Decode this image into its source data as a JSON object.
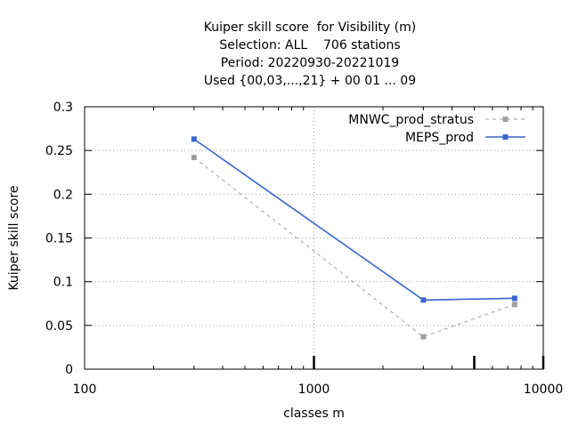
{
  "chart_data": {
    "type": "line",
    "title_lines": [
      "Kuiper skill score  for Visibility (m)",
      "Selection: ALL    706 stations",
      "Period: 20220930-20221019",
      "Used {00,03,...,21} + 00 01 ... 09"
    ],
    "xlabel": "classes m",
    "ylabel": "Kuiper skill score",
    "x_scale": "log",
    "xlim": [
      100,
      10000
    ],
    "ylim": [
      0,
      0.3
    ],
    "x_ticks": [
      100,
      1000,
      10000
    ],
    "x_tick_labels": [
      "100",
      "1000",
      "10000"
    ],
    "y_ticks": [
      0,
      0.05,
      0.1,
      0.15,
      0.2,
      0.25,
      0.3
    ],
    "y_tick_labels": [
      "0",
      "0.05",
      "0.1",
      "0.15",
      "0.2",
      "0.25",
      "0.3"
    ],
    "thick_x_marks": [
      1000,
      5000,
      10000
    ],
    "grid": true,
    "legend_position": "top-right",
    "series": [
      {
        "name": "MNWC_prod_stratus",
        "color": "#a0a0a0",
        "dashed": true,
        "x": [
          300,
          3000,
          7500
        ],
        "y": [
          0.242,
          0.037,
          0.074
        ]
      },
      {
        "name": "MEPS_prod",
        "color": "#3a66cc",
        "dashed": false,
        "x": [
          300,
          3000,
          7500
        ],
        "y": [
          0.263,
          0.079,
          0.081
        ]
      }
    ]
  }
}
